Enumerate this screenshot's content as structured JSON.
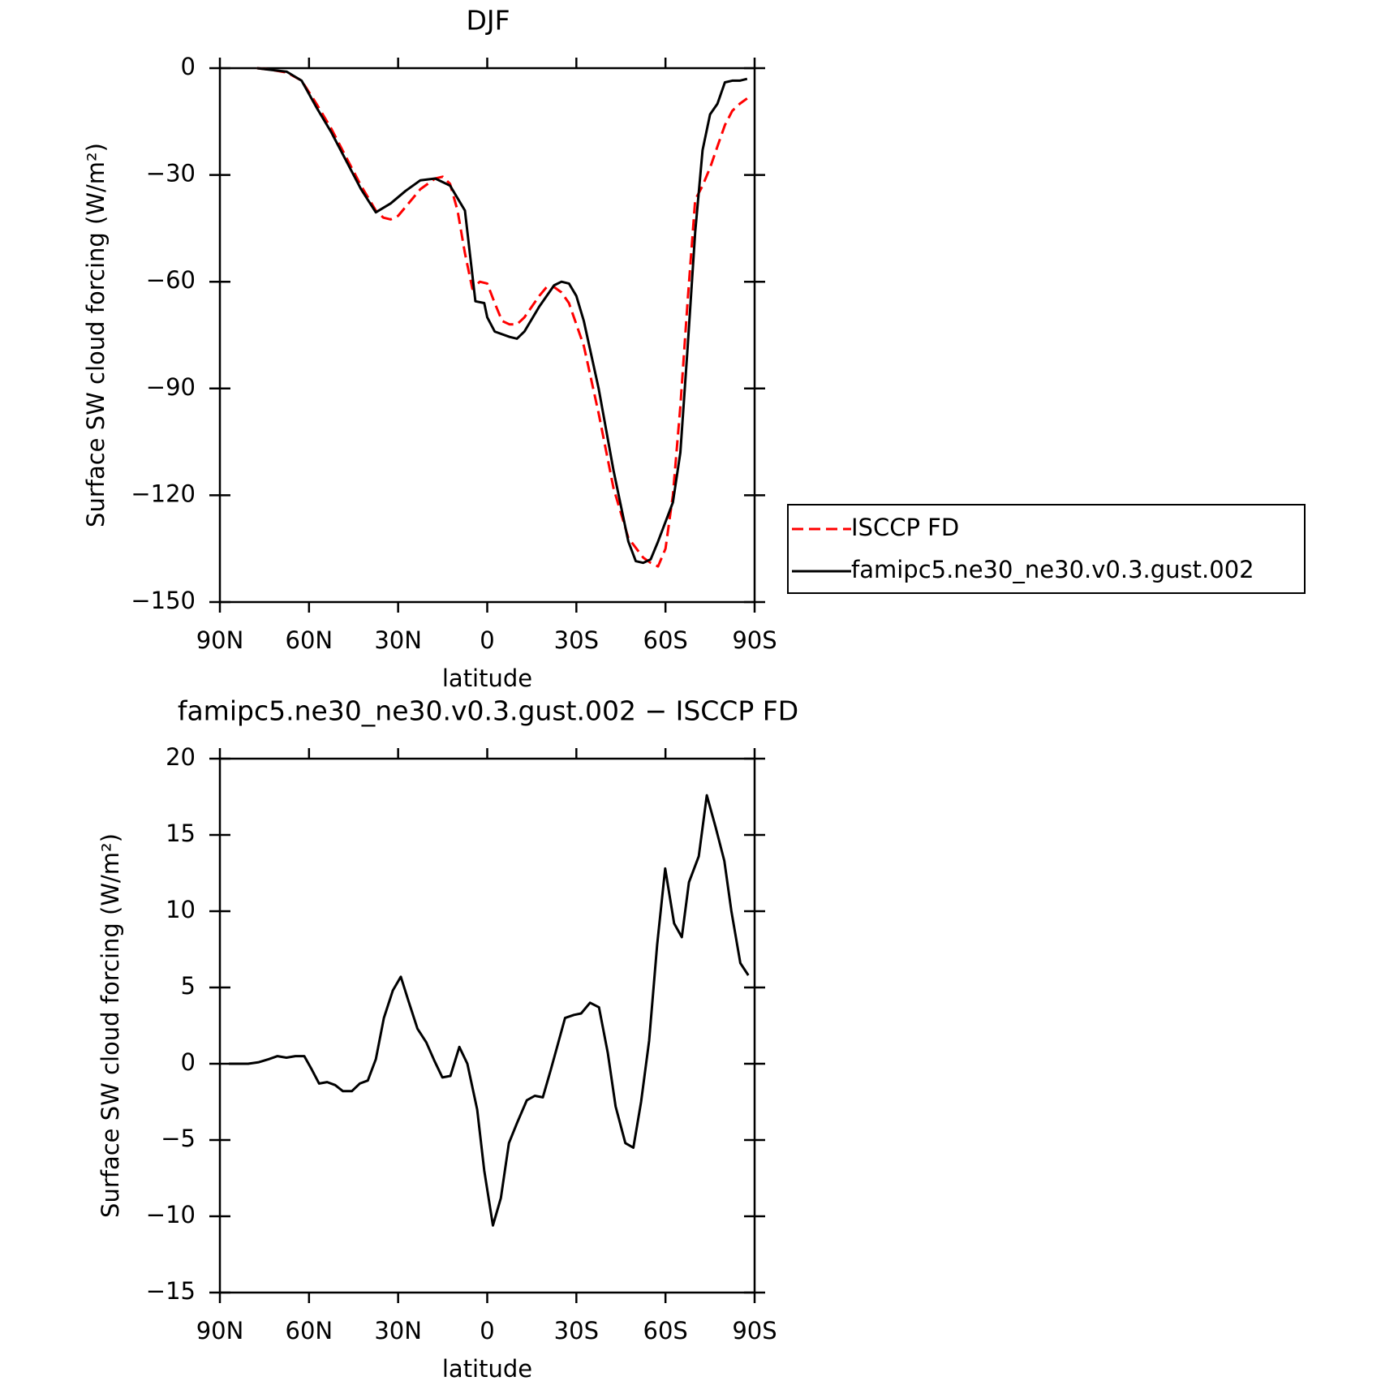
{
  "chart_data": [
    {
      "type": "line",
      "title": "DJF",
      "xlabel": "latitude",
      "ylabel": "Surface SW cloud forcing (W/m²)",
      "xlim": [
        90,
        -90
      ],
      "xticks": [
        {
          "value": 90,
          "label": "90N"
        },
        {
          "value": 60,
          "label": "60N"
        },
        {
          "value": 30,
          "label": "30N"
        },
        0,
        {
          "value": -30,
          "label": "30S"
        },
        {
          "value": -60,
          "label": "60S"
        },
        {
          "value": -90,
          "label": "90S"
        }
      ],
      "ylim": [
        -150,
        0
      ],
      "yticks": [
        0,
        {
          "value": -30,
          "label": "−30"
        },
        {
          "value": -60,
          "label": "−60"
        },
        {
          "value": -90,
          "label": "−90"
        },
        {
          "value": -120,
          "label": "−120"
        },
        {
          "value": -150,
          "label": "−150"
        }
      ],
      "legend": true,
      "series": [
        {
          "name": "ISCCP FD",
          "color": "#ff0000",
          "style": "dashed",
          "x": [
            77.5,
            72.5,
            67.5,
            62.5,
            57.5,
            52.5,
            47.5,
            42.5,
            37.5,
            35,
            32.5,
            30,
            27.5,
            22.5,
            17.5,
            15,
            12.5,
            10,
            7.5,
            5,
            2.5,
            0,
            -2.5,
            -5,
            -7.5,
            -10,
            -12.5,
            -17.5,
            -20,
            -22.5,
            -25,
            -27.5,
            -32.5,
            -37.5,
            -42.5,
            -47.5,
            -52.5,
            -55,
            -57.5,
            -60,
            -62.5,
            -65,
            -67.5,
            -70,
            -72.5,
            -75,
            -77.5,
            -80,
            -82.5,
            -85,
            -87.5
          ],
          "values": [
            0,
            -0.5,
            -1.2,
            -3.5,
            -10,
            -17,
            -25,
            -33,
            -40,
            -42,
            -42.5,
            -41.5,
            -39,
            -34,
            -31,
            -30.5,
            -32.5,
            -40,
            -52,
            -62,
            -60,
            -60.5,
            -66,
            -71,
            -72,
            -72,
            -70,
            -64,
            -61.5,
            -61.5,
            -63,
            -66,
            -78,
            -97,
            -118,
            -132,
            -137.5,
            -139,
            -140,
            -135,
            -120,
            -95,
            -65,
            -37,
            -33,
            -28,
            -22,
            -16,
            -12,
            -10,
            -8.5
          ]
        },
        {
          "name": "famipc5.ne30_ne30.v0.3.gust.002",
          "color": "#000000",
          "style": "solid",
          "x": [
            77.5,
            72.5,
            67.5,
            62.5,
            57.5,
            52.5,
            47.5,
            42.5,
            37.5,
            32.5,
            27.5,
            22.5,
            17.5,
            12.5,
            7.5,
            4,
            1,
            0,
            -2.5,
            -7.5,
            -10,
            -12.5,
            -17.5,
            -22.5,
            -25,
            -27.5,
            -30,
            -32.5,
            -37.5,
            -42.5,
            -47.5,
            -50,
            -52.5,
            -55,
            -57.5,
            -62.5,
            -65,
            -67.5,
            -70,
            -72.5,
            -75,
            -77.5,
            -80,
            -82.5,
            -85,
            -87.5
          ],
          "values": [
            0,
            -0.5,
            -1,
            -3.5,
            -11,
            -18,
            -26,
            -34,
            -40.5,
            -38,
            -34.5,
            -31.5,
            -31,
            -33,
            -40,
            -65.5,
            -66,
            -70,
            -74,
            -75.5,
            -76,
            -74,
            -67,
            -61,
            -60,
            -60.5,
            -64,
            -71,
            -90,
            -113,
            -133,
            -138.5,
            -139,
            -138,
            -133,
            -122,
            -108,
            -78,
            -46,
            -23,
            -13,
            -10,
            -4,
            -3.5,
            -3.5,
            -3
          ]
        }
      ]
    },
    {
      "type": "line",
      "title": "famipc5.ne30_ne30.v0.3.gust.002 − ISCCP FD",
      "xlabel": "latitude",
      "ylabel": "Surface SW cloud forcing (W/m²)",
      "xlim": [
        90,
        -90
      ],
      "xticks": [
        {
          "value": 90,
          "label": "90N"
        },
        {
          "value": 60,
          "label": "60N"
        },
        {
          "value": 30,
          "label": "30N"
        },
        0,
        {
          "value": -30,
          "label": "30S"
        },
        {
          "value": -60,
          "label": "60S"
        },
        {
          "value": -90,
          "label": "90S"
        }
      ],
      "ylim": [
        -15,
        20
      ],
      "yticks": [
        20,
        15,
        10,
        5,
        0,
        {
          "value": -5,
          "label": "−5"
        },
        {
          "value": -10,
          "label": "−10"
        },
        {
          "value": -15,
          "label": "−15"
        }
      ],
      "legend": false,
      "series": [
        {
          "color": "#000000",
          "style": "solid",
          "x": [
            87.0,
            84.0,
            80.5,
            76.9,
            73.6,
            70.6,
            67.6,
            64.6,
            61.6,
            59.3,
            56.6,
            53.9,
            51.2,
            48.6,
            45.6,
            42.9,
            40.2,
            37.5,
            34.8,
            31.8,
            29.1,
            26.5,
            23.5,
            20.5,
            17.8,
            15.1,
            12.4,
            9.4,
            6.7,
            3.4,
            1.0,
            -1.9,
            -4.6,
            -7.3,
            -10.0,
            -13.3,
            -16.0,
            -18.7,
            -21.4,
            -23.8,
            -26.2,
            -29.2,
            -31.6,
            -34.6,
            -37.6,
            -40.6,
            -43.2,
            -46.5,
            -49.2,
            -51.8,
            -54.5,
            -57.2,
            -59.9,
            -62.9,
            -65.5,
            -67.9,
            -71.2,
            -73.9,
            -76.9,
            -79.8,
            -82.2,
            -85.2,
            -87.9
          ],
          "values": [
            0,
            0,
            0,
            0.1,
            0.3,
            0.5,
            0.4,
            0.5,
            0.5,
            -0.3,
            -1.3,
            -1.2,
            -1.4,
            -1.8,
            -1.8,
            -1.3,
            -1.1,
            0.3,
            3,
            4.8,
            5.7,
            4.1,
            2.3,
            1.4,
            0.2,
            -0.9,
            -0.8,
            1.1,
            0,
            -3,
            -7,
            -10.6,
            -8.8,
            -5.2,
            -3.9,
            -2.4,
            -2.1,
            -2.2,
            -0.4,
            1.3,
            3,
            3.2,
            3.3,
            4,
            3.7,
            0.7,
            -2.8,
            -5.2,
            -5.5,
            -2.5,
            1.5,
            7.8,
            12.8,
            9.2,
            8.3,
            11.9,
            13.6,
            17.6,
            15.5,
            13.3,
            10,
            6.6,
            5.8
          ]
        }
      ]
    }
  ]
}
